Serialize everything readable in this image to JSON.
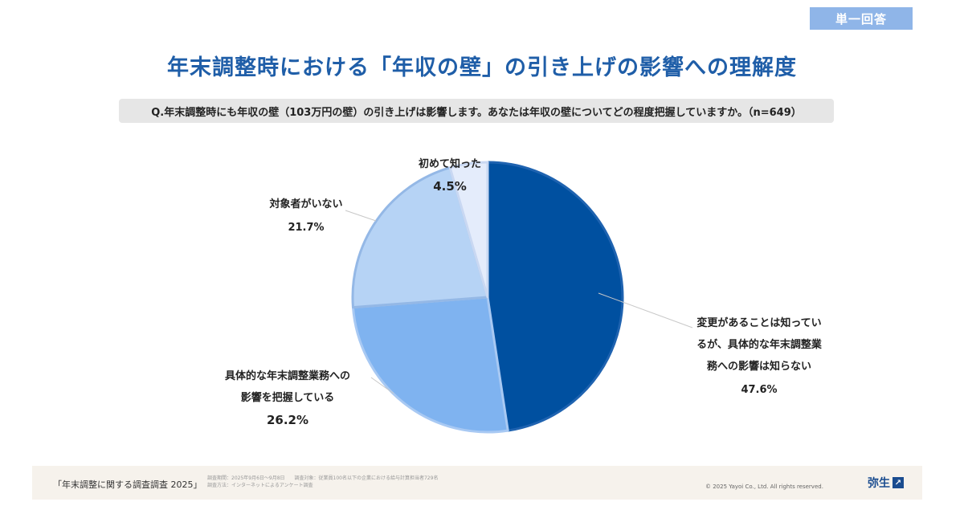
{
  "header": {
    "badge": "単一回答"
  },
  "chart_data": {
    "type": "pie",
    "title": "年末調整時における「年収の壁」の引き上げの影響への理解度",
    "subtitle": "Q.年末調整時にも年収の壁（103万円の壁）の引き上げは影響します。あなたは年収の壁についてどの程度把握していますか。（n=649）",
    "slices": [
      {
        "label_lines": [
          "変更があることは知ってい",
          "るが、具体的な年末調整業",
          "務への影響は知らない"
        ],
        "value": 47.6,
        "value_label": "47.6%",
        "color": "#0050a0"
      },
      {
        "label_lines": [
          "具体的な年末調整業務への",
          "影響を把握している"
        ],
        "value": 26.2,
        "value_label": "26.2%",
        "color": "#7fb3f0"
      },
      {
        "label_lines": [
          "対象者がいない"
        ],
        "value": 21.7,
        "value_label": "21.7%",
        "color": "#b6d3f5"
      },
      {
        "label_lines": [
          "初めて知った"
        ],
        "value": 4.5,
        "value_label": "4.5%",
        "color": "#e4ecfb"
      }
    ]
  },
  "footer": {
    "title": "「年末調整に関する調査調査 2025」",
    "meta_line1": "調査期間：2025年9月6日～9月8日　　調査対象：従業員100名以下の企業における給与計算担当者729名",
    "meta_line2": "調査方法：インターネットによるアンケート調査",
    "copyright": "© 2025 Yayoi Co., Ltd.  All rights reserved.",
    "logo_text": "弥生",
    "logo_mark": "↗"
  }
}
